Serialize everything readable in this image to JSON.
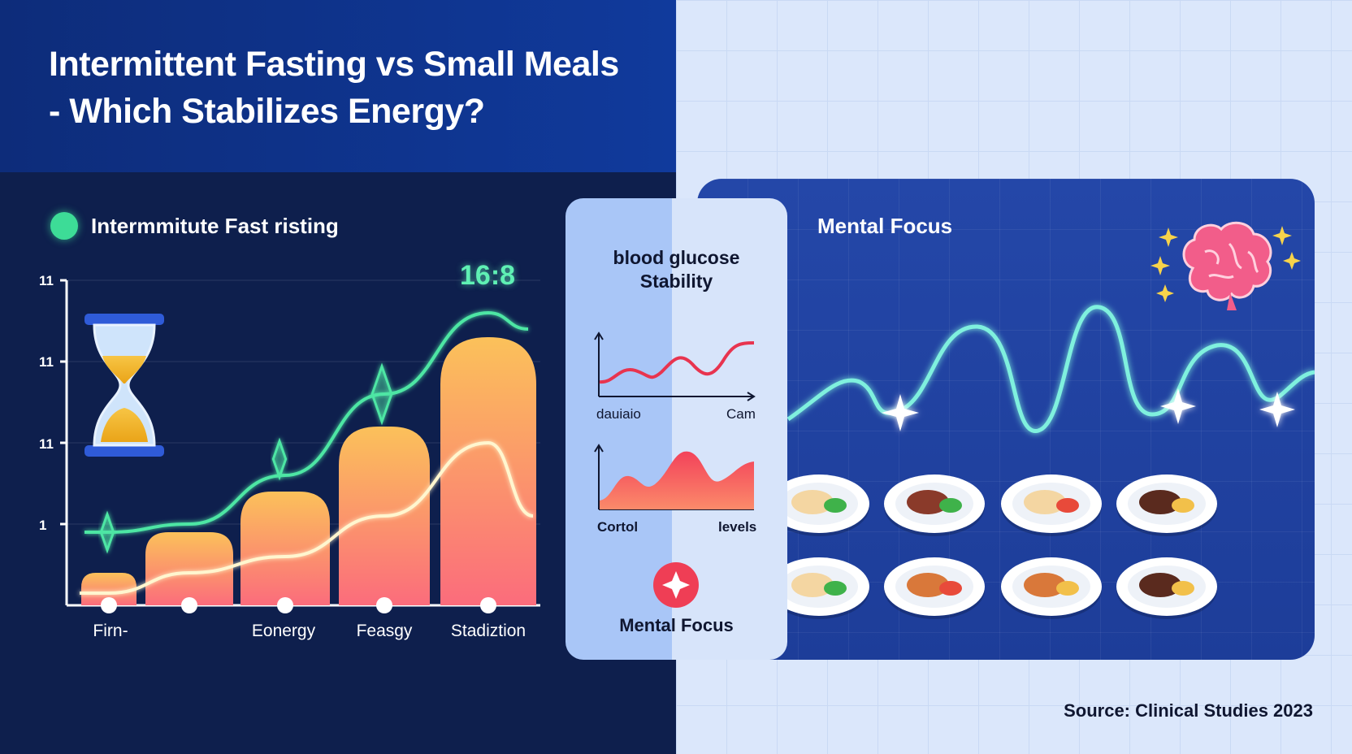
{
  "title": "Intermittent Fasting vs Small Meals - Which Stabilizes Energy?",
  "left_panel": {
    "legend_label": "Intermmitute Fast risting",
    "ratio_label": "16:8"
  },
  "middle_panel": {
    "title_line1": "blood glucose",
    "title_line2": "Stability",
    "chart1_x_left": "dauiaio",
    "chart1_x_right": "Cam",
    "chart2_x_left": "Cortol",
    "chart2_x_right": "levels",
    "focus_label": "Mental Focus"
  },
  "right_panel": {
    "title": "Mental Focus",
    "brain_icon": "brain-icon",
    "plate_count": 8
  },
  "source": "Source: Clinical Studies 2023",
  "colors": {
    "bar_top": "#fbc15a",
    "bar_bottom": "#fb6c7c",
    "energy_line": "#4ee6a4",
    "focus_line": "#7ff0de",
    "glucose_line": "#e8344f"
  },
  "chart_data": {
    "type": "bar",
    "categories": [
      "Firn-",
      "",
      "Eonergy",
      "Feasgy",
      "Stadiztion"
    ],
    "y_tick_labels": [
      "11",
      "11",
      "11",
      "1"
    ],
    "values": [
      0.4,
      0.9,
      1.4,
      2.2,
      3.3
    ],
    "ylim": [
      0,
      4
    ],
    "series": [
      {
        "values": [
          0.9,
          1.0,
          1.6,
          2.6,
          3.6
        ]
      },
      {
        "values": [
          0.15,
          0.4,
          0.6,
          1.1,
          2.0
        ]
      }
    ],
    "grid": true
  }
}
